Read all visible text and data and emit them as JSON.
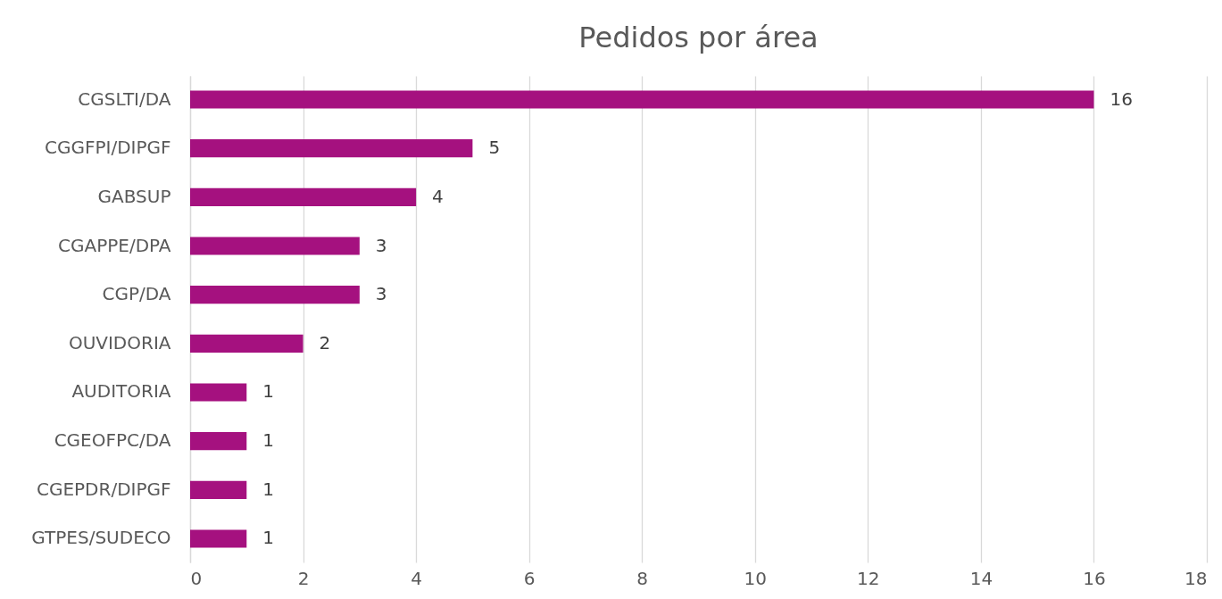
{
  "chart_data": {
    "type": "bar",
    "orientation": "horizontal",
    "title": "Pedidos por área",
    "categories": [
      "CGSLTI/DA",
      "CGGFPI/DIPGF",
      "GABSUP",
      "CGAPPE/DPA",
      "CGP/DA",
      "OUVIDORIA",
      "AUDITORIA",
      "CGEOFPC/DA",
      "CGEPDR/DIPGF",
      "GTPES/SUDECO"
    ],
    "values": [
      16,
      5,
      4,
      3,
      3,
      2,
      1,
      1,
      1,
      1
    ],
    "color": "#a5117f",
    "xlim": [
      0,
      18
    ],
    "xticks": [
      0,
      2,
      4,
      6,
      8,
      10,
      12,
      14,
      16,
      18
    ],
    "grid": "x",
    "data_labels": true
  }
}
